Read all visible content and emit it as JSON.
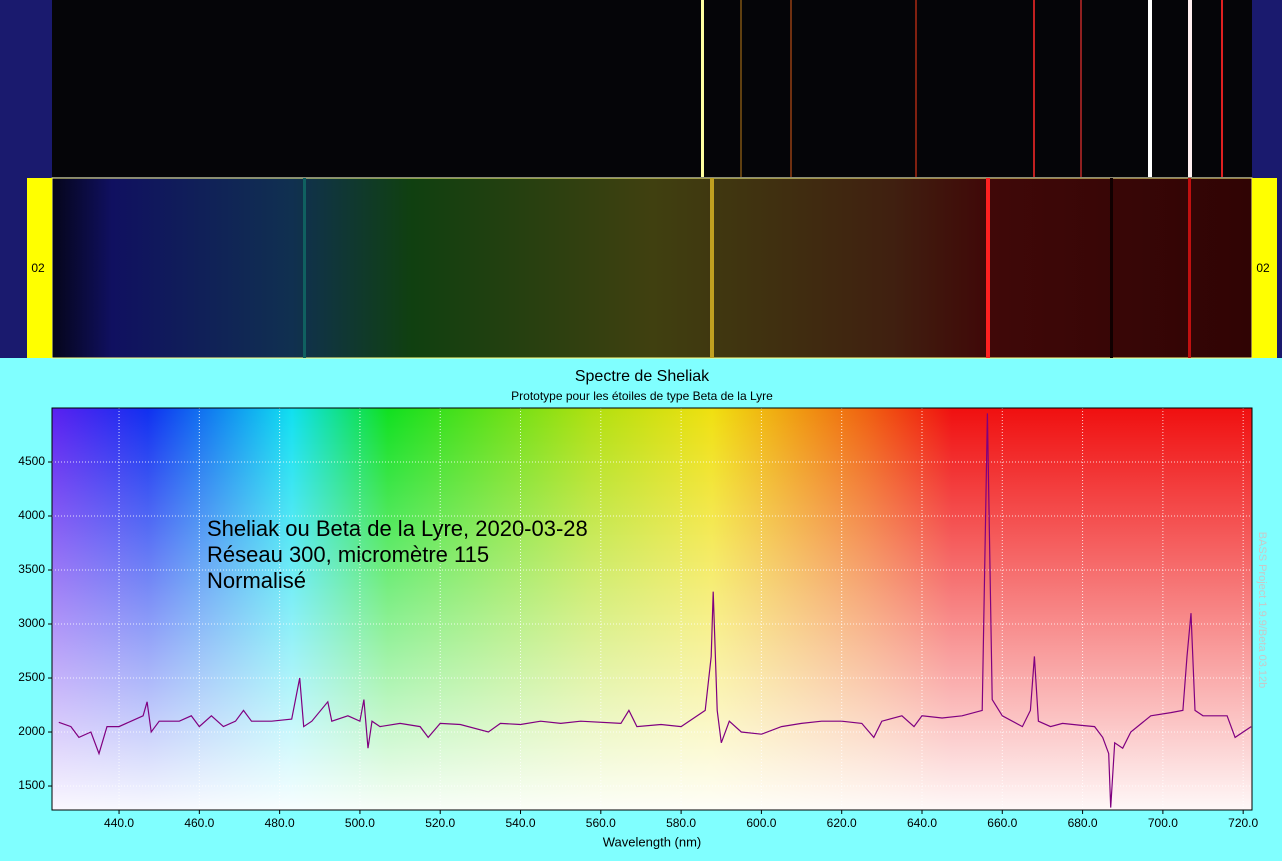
{
  "spectrum_strip": {
    "left_label": "02",
    "right_label": "02"
  },
  "chart_data": {
    "type": "line",
    "title": "Spectre de Sheliak",
    "subtitle": "Prototype pour les étoiles de type Beta de la Lyre",
    "x_label": "Wavelength (nm)",
    "annotations": [
      "Sheliak ou Beta de la Lyre,  2020-03-28",
      "Réseau 300, micromètre 115",
      "Normalisé"
    ],
    "watermark": "BASS Project 1.9.9/Beta 03.12b",
    "color": "#800080",
    "grid": true,
    "xlim": [
      423.3,
      722.2
    ],
    "ylim": [
      1278,
      5000
    ],
    "xticks": [
      {
        "value": 440,
        "label": "440.0"
      },
      {
        "value": 460,
        "label": "460.0"
      },
      {
        "value": 480,
        "label": "480.0"
      },
      {
        "value": 500,
        "label": "500.0"
      },
      {
        "value": 520,
        "label": "520.0"
      },
      {
        "value": 540,
        "label": "540.0"
      },
      {
        "value": 560,
        "label": "560.0"
      },
      {
        "value": 580,
        "label": "580.0"
      },
      {
        "value": 600,
        "label": "600.0"
      },
      {
        "value": 620,
        "label": "620.0"
      },
      {
        "value": 640,
        "label": "640.0"
      },
      {
        "value": 660,
        "label": "660.0"
      },
      {
        "value": 680,
        "label": "680.0"
      },
      {
        "value": 700,
        "label": "700.0"
      },
      {
        "value": 720,
        "label": "720.0"
      }
    ],
    "yticks": [
      1500,
      2000,
      2500,
      3000,
      3500,
      4000,
      4500
    ],
    "x": [
      425,
      428,
      430,
      433,
      435,
      437,
      440,
      443,
      446,
      447,
      448,
      450,
      455,
      458,
      460,
      463,
      466,
      469,
      471,
      473,
      478,
      483,
      485,
      486,
      488,
      492,
      493,
      497,
      500,
      501,
      502,
      503,
      505,
      510,
      515,
      517,
      520,
      525,
      532,
      535,
      540,
      545,
      550,
      555,
      565,
      567,
      569,
      575,
      580,
      586,
      587.5,
      588,
      589,
      590,
      592,
      595,
      600,
      605,
      610,
      615,
      620,
      625,
      628,
      630,
      635,
      638,
      640,
      645,
      650,
      655,
      656.3,
      657.5,
      660,
      665,
      667,
      668,
      669,
      672,
      675,
      680,
      683,
      685,
      686.5,
      687,
      688,
      690,
      692,
      697,
      702,
      705,
      706,
      707,
      708,
      710,
      716,
      718,
      722
    ],
    "values": [
      2090,
      2050,
      1950,
      2000,
      1800,
      2050,
      2050,
      2100,
      2150,
      2280,
      2000,
      2100,
      2100,
      2150,
      2050,
      2150,
      2050,
      2100,
      2200,
      2100,
      2100,
      2120,
      2500,
      2050,
      2100,
      2280,
      2100,
      2150,
      2100,
      2300,
      1850,
      2100,
      2050,
      2080,
      2050,
      1950,
      2080,
      2070,
      2000,
      2080,
      2070,
      2100,
      2080,
      2100,
      2080,
      2200,
      2050,
      2070,
      2050,
      2200,
      2700,
      3300,
      2200,
      1900,
      2100,
      2000,
      1980,
      2050,
      2080,
      2100,
      2100,
      2080,
      1950,
      2100,
      2150,
      2050,
      2150,
      2130,
      2150,
      2200,
      4950,
      2300,
      2150,
      2050,
      2200,
      2700,
      2100,
      2050,
      2080,
      2060,
      2050,
      1950,
      1800,
      1300,
      1900,
      1850,
      2000,
      2150,
      2180,
      2200,
      2700,
      3100,
      2200,
      2150,
      2150,
      1950,
      2050
    ]
  }
}
